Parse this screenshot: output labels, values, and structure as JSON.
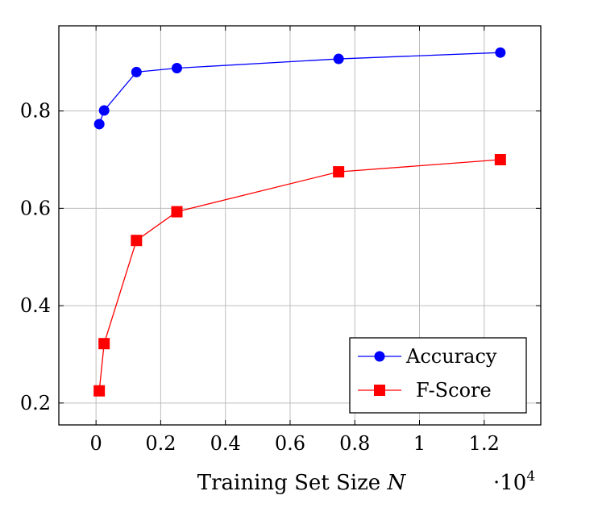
{
  "chart_data": {
    "type": "line",
    "title": "",
    "xlabel": "Training Set Size",
    "xlabel_var": "N",
    "x_multiplier_base": "·10",
    "x_multiplier_exp": "4",
    "xlim": [
      -0.115,
      1.375
    ],
    "ylim": [
      0.155,
      0.975
    ],
    "x_ticks": [
      0,
      0.2,
      0.4,
      0.6,
      0.8,
      1,
      1.2
    ],
    "x_tick_labels": [
      "0",
      "0.2",
      "0.4",
      "0.6",
      "0.8",
      "1",
      "1.2"
    ],
    "y_ticks": [
      0.2,
      0.4,
      0.6,
      0.8
    ],
    "y_tick_labels": [
      "0.2",
      "0.4",
      "0.6",
      "0.8"
    ],
    "grid": true,
    "legend_position": "bottom-right",
    "series": [
      {
        "name": "Accuracy",
        "color": "#0000ff",
        "marker": "circle",
        "x": [
          0.01,
          0.025,
          0.125,
          0.25,
          0.75,
          1.25
        ],
        "y": [
          0.773,
          0.801,
          0.88,
          0.888,
          0.907,
          0.92
        ]
      },
      {
        "name": "F-Score",
        "color": "#ff0000",
        "marker": "square",
        "x": [
          0.01,
          0.025,
          0.125,
          0.25,
          0.75,
          1.25
        ],
        "y": [
          0.225,
          0.322,
          0.534,
          0.593,
          0.675,
          0.7
        ]
      }
    ]
  }
}
